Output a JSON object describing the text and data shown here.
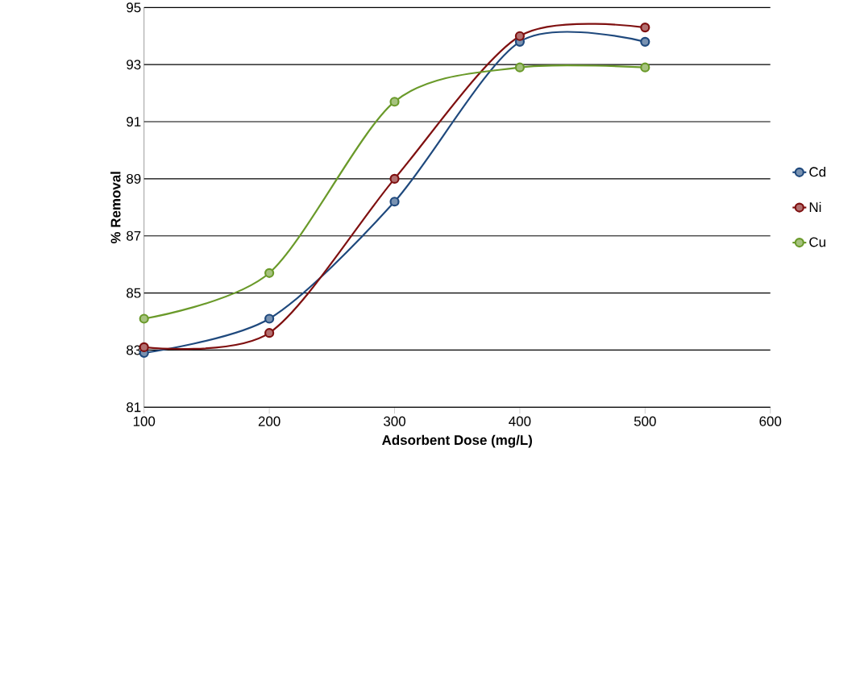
{
  "chart_data": {
    "type": "line",
    "xlabel": "Adsorbent Dose (mg/L)",
    "ylabel": "% Removal",
    "x": [
      100,
      200,
      300,
      400,
      500
    ],
    "series": [
      {
        "name": "Cd",
        "color": "#1f497d",
        "values": [
          82.9,
          84.1,
          88.2,
          93.8,
          93.8
        ]
      },
      {
        "name": "Ni",
        "color": "#7f1010",
        "values": [
          83.1,
          83.6,
          89.0,
          94.0,
          94.3
        ]
      },
      {
        "name": "Cu",
        "color": "#6a9a2a",
        "values": [
          84.1,
          85.7,
          91.7,
          92.9,
          92.9
        ]
      }
    ],
    "xlim": [
      100,
      600
    ],
    "xticks": [
      100,
      200,
      300,
      400,
      500,
      600
    ],
    "ylim": [
      81,
      95
    ],
    "yticks": [
      81,
      83,
      85,
      87,
      89,
      91,
      93,
      95
    ],
    "grid": "y",
    "legend": "right",
    "marker": "circle",
    "line_style": "solid"
  }
}
